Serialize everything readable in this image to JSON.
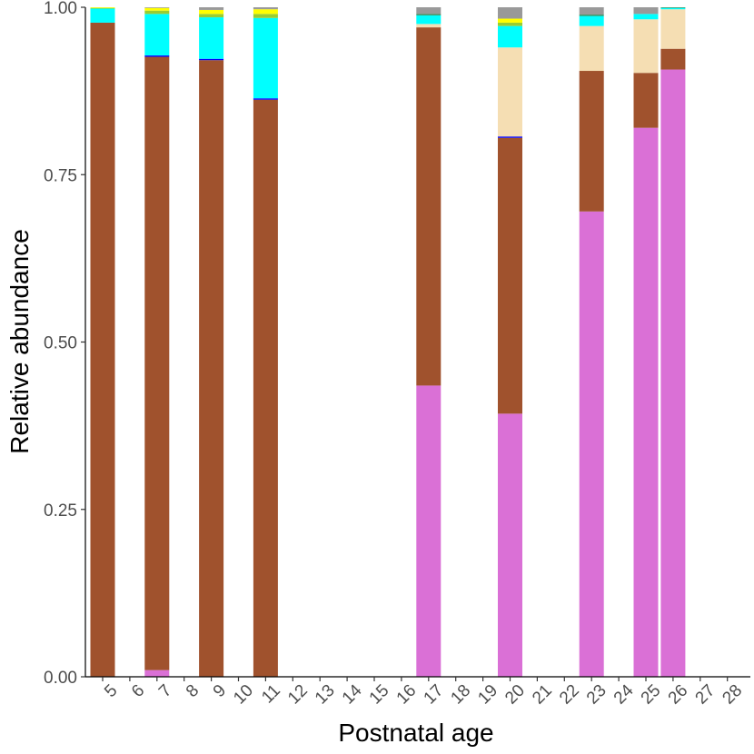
{
  "chart_data": {
    "type": "bar",
    "stacked": true,
    "xlabel": "Postnatal age",
    "ylabel": "Relative abundance",
    "ylim": [
      0,
      1
    ],
    "y_ticks": [
      {
        "value": 0.0,
        "label": "0.00"
      },
      {
        "value": 0.25,
        "label": "0.25"
      },
      {
        "value": 0.5,
        "label": "0.50"
      },
      {
        "value": 0.75,
        "label": "0.75"
      },
      {
        "value": 1.0,
        "label": "1.00"
      }
    ],
    "categories": [
      "5",
      "6",
      "7",
      "8",
      "9",
      "10",
      "11",
      "12",
      "13",
      "14",
      "15",
      "16",
      "17",
      "18",
      "19",
      "20",
      "21",
      "22",
      "23",
      "24",
      "25",
      "26",
      "27",
      "28"
    ],
    "series": [
      {
        "name": "orchid",
        "color": "#DA70D6",
        "values": [
          0,
          0,
          0.01,
          0,
          0,
          0,
          0,
          0,
          0,
          0,
          0,
          0,
          0.435,
          0,
          0,
          0.393,
          0,
          0,
          0.695,
          0,
          0.82,
          0.907,
          0,
          0
        ]
      },
      {
        "name": "sienna",
        "color": "#A0522D",
        "values": [
          0.977,
          0,
          0.916,
          0,
          0.921,
          0,
          0.862,
          0,
          0,
          0,
          0,
          0,
          0.535,
          0,
          0,
          0.412,
          0,
          0,
          0.21,
          0,
          0.082,
          0.031,
          0,
          0
        ]
      },
      {
        "name": "blue",
        "color": "#0000FF",
        "values": [
          0,
          0,
          0.002,
          0,
          0.002,
          0,
          0.002,
          0,
          0,
          0,
          0,
          0,
          0,
          0,
          0,
          0.002,
          0,
          0,
          0,
          0,
          0,
          0,
          0,
          0
        ]
      },
      {
        "name": "wheat",
        "color": "#F5DEB3",
        "values": [
          0,
          0,
          0,
          0,
          0,
          0,
          0,
          0,
          0,
          0,
          0,
          0,
          0.005,
          0,
          0,
          0.133,
          0,
          0,
          0.067,
          0,
          0.08,
          0.059,
          0,
          0
        ]
      },
      {
        "name": "cyan",
        "color": "#00FFFF",
        "values": [
          0.021,
          0,
          0.062,
          0,
          0.062,
          0,
          0.12,
          0,
          0,
          0,
          0,
          0,
          0.013,
          0,
          0,
          0.032,
          0,
          0,
          0.015,
          0,
          0.008,
          0.002,
          0,
          0
        ]
      },
      {
        "name": "green",
        "color": "#2E8B57",
        "values": [
          0,
          0,
          0,
          0,
          0,
          0,
          0,
          0,
          0,
          0,
          0,
          0,
          0.002,
          0,
          0,
          0,
          0,
          0,
          0.002,
          0,
          0,
          0.001,
          0,
          0
        ]
      },
      {
        "name": "lime",
        "color": "#9ACD32",
        "values": [
          0.001,
          0,
          0.005,
          0,
          0.005,
          0,
          0.006,
          0,
          0,
          0,
          0,
          0,
          0,
          0,
          0,
          0.005,
          0,
          0,
          0,
          0,
          0,
          0,
          0,
          0
        ]
      },
      {
        "name": "yellow",
        "color": "#FFFF00",
        "values": [
          0.001,
          0,
          0.004,
          0,
          0.006,
          0,
          0.007,
          0,
          0,
          0,
          0,
          0,
          0,
          0,
          0,
          0.006,
          0,
          0,
          0,
          0,
          0,
          0,
          0,
          0
        ]
      },
      {
        "name": "grey",
        "color": "#999999",
        "values": [
          0,
          0,
          0.001,
          0,
          0.004,
          0,
          0.003,
          0,
          0,
          0,
          0,
          0,
          0.01,
          0,
          0,
          0.017,
          0,
          0,
          0.011,
          0,
          0.01,
          0,
          0,
          0
        ]
      }
    ]
  }
}
